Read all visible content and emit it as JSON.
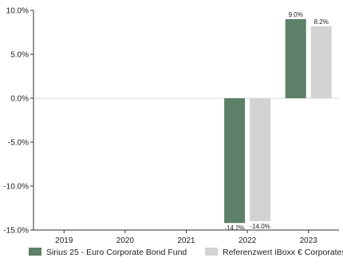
{
  "chart_data": {
    "type": "bar",
    "categories": [
      "2019",
      "2020",
      "2021",
      "2022",
      "2023"
    ],
    "series": [
      {
        "name": "Sirius 25 - Euro Corporate Bond Fund",
        "color": "#5d8068",
        "values": [
          null,
          null,
          null,
          -14.2,
          9.0
        ],
        "labels": [
          "",
          "",
          "",
          "-14.2%",
          "9.0%"
        ]
      },
      {
        "name": "Referenzwert iBoxx € Corporates",
        "color": "#d3d3d3",
        "values": [
          null,
          null,
          null,
          -14.0,
          8.2
        ],
        "labels": [
          "",
          "",
          "",
          "-14.0%",
          "8.2%"
        ]
      }
    ],
    "yticks": [
      10.0,
      5.0,
      0.0,
      -5.0,
      -10.0,
      -15.0
    ],
    "ytick_labels": [
      "10.0%",
      "5.0%",
      "0.0%",
      "-5.0%",
      "-10.0%",
      "-15.0%"
    ],
    "ylim": [
      -15.0,
      10.0
    ],
    "grid": false,
    "legend_position": "bottom",
    "title": "",
    "xlabel": "",
    "ylabel": ""
  }
}
